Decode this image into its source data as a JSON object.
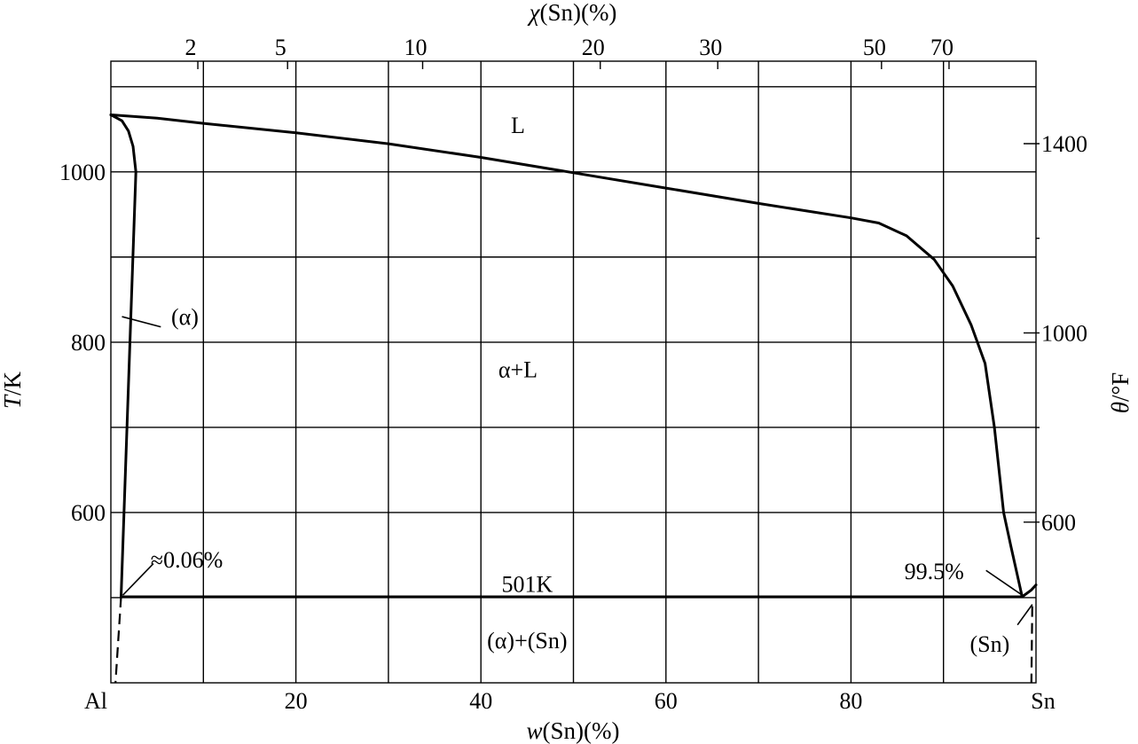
{
  "chart_data": {
    "type": "line",
    "subtype": "binary-phase-diagram",
    "system": [
      "Al",
      "Sn"
    ],
    "grid": true,
    "x_bottom": {
      "label_italic": "w",
      "label_rest": "(Sn)(%)",
      "range": [
        0,
        100
      ],
      "ticks": [
        20,
        40,
        60,
        80
      ],
      "tick_labels": [
        "20",
        "40",
        "60",
        "80"
      ],
      "end_labels": {
        "left": "Al",
        "right": "Sn"
      }
    },
    "x_top": {
      "label_italic": "χ",
      "label_rest": "(Sn)(%)",
      "ticks": [
        2,
        5,
        10,
        20,
        30,
        50,
        70
      ],
      "tick_labels": [
        "2",
        "5",
        "10",
        "20",
        "30",
        "50",
        "70"
      ],
      "tick_positions_wt_pct": [
        9.4,
        19.1,
        33.7,
        52.9,
        65.6,
        83.3,
        90.6
      ]
    },
    "y_left": {
      "label_italic": "T",
      "label_rest": "/K",
      "range": [
        400,
        1130
      ],
      "ticks": [
        600,
        800,
        1000
      ],
      "tick_labels": [
        "600",
        "800",
        "1000"
      ],
      "gridlines_K": [
        500,
        600,
        700,
        800,
        900,
        1000,
        1100
      ]
    },
    "y_right": {
      "label_italic": "θ",
      "label_rest": "/°F",
      "ticks": [
        600,
        1000,
        1400
      ],
      "tick_labels": [
        "600",
        "1000",
        "1400"
      ],
      "minor_ticks": [
        800,
        1200
      ]
    },
    "series": [
      {
        "role": "liquidus",
        "style": "solid",
        "x": [
          0,
          5,
          10,
          20,
          30,
          40,
          50,
          60,
          70,
          80,
          83,
          86,
          89,
          91,
          93,
          94.5,
          95.5,
          96.5,
          97.3,
          98.5,
          99.5,
          100
        ],
        "y": [
          1067,
          1063,
          1057,
          1046,
          1033,
          1017,
          999,
          981,
          963,
          946,
          940,
          925,
          897,
          866,
          820,
          775,
          700,
          600,
          560,
          501,
          509,
          515
        ]
      },
      {
        "role": "solidus (α)",
        "style": "solid",
        "x": [
          0,
          1.2,
          1.9,
          2.4,
          2.7,
          1.1
        ],
        "y": [
          1067,
          1060,
          1048,
          1030,
          1000,
          501
        ]
      },
      {
        "role": "eutectic isotherm",
        "style": "solid",
        "x": [
          1.1,
          98.5
        ],
        "y": [
          501,
          501
        ]
      },
      {
        "role": "solvus (α)",
        "style": "dashed",
        "x": [
          1.1,
          0.5
        ],
        "y": [
          501,
          400
        ]
      },
      {
        "role": "solvus (Sn)",
        "style": "dashed",
        "x": [
          99.6,
          99.5
        ],
        "y": [
          490,
          400
        ]
      }
    ],
    "labels": [
      {
        "text": "L",
        "x": 44,
        "y": 1055
      },
      {
        "text": "(α)",
        "x": 8,
        "y": 830
      },
      {
        "text": "α+L",
        "x": 44,
        "y": 768
      },
      {
        "text": "501K",
        "x": 45,
        "y": 516
      },
      {
        "text": "(α)+(Sn)",
        "x": 45,
        "y": 450
      },
      {
        "text": "≈0.06%",
        "x": 8.2,
        "y": 545
      },
      {
        "text": "99.5%",
        "x": 89,
        "y": 531
      },
      {
        "text": "(Sn)",
        "x": 95,
        "y": 446
      }
    ],
    "leaders": [
      {
        "from": [
          1.2,
          830
        ],
        "to": [
          5.4,
          818
        ],
        "label": "(α)"
      },
      {
        "from": [
          1.3,
          503
        ],
        "to": [
          4.6,
          540
        ],
        "label": "≈0.06%"
      },
      {
        "from": [
          98.5,
          503
        ],
        "to": [
          94.6,
          532
        ],
        "label": "99.5%"
      },
      {
        "from": [
          99.6,
          492
        ],
        "to": [
          98.0,
          468
        ],
        "label": "(Sn)"
      }
    ]
  }
}
